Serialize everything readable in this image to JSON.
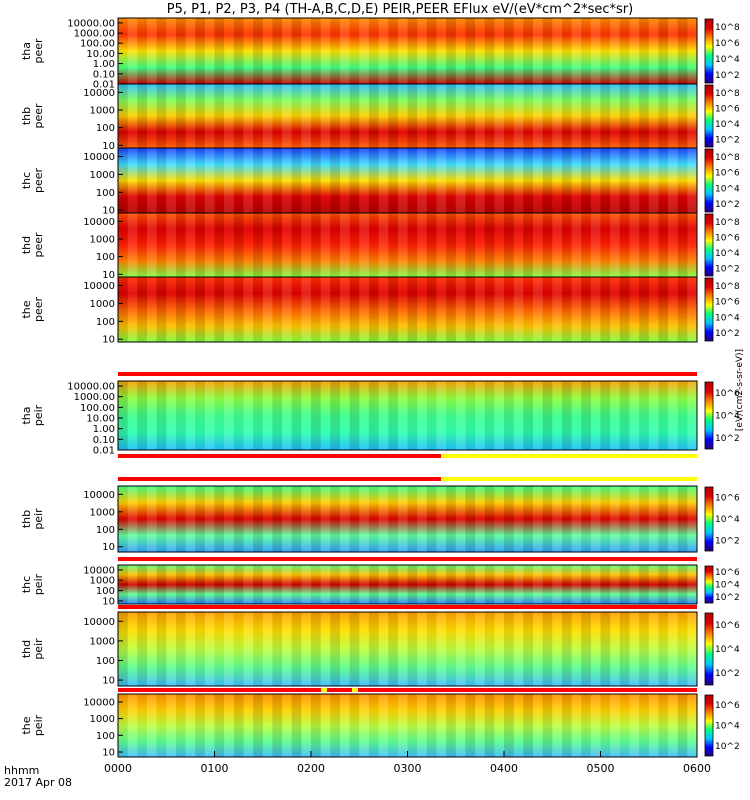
{
  "chart_data": {
    "type": "heatmap",
    "title": "P5, P1, P2, P3, P4 (TH-A,B,C,D,E) PEIR,PEER EFlux eV/(eV*cm^2*sec*sr)",
    "xlabel_line1": "hhmm",
    "xlabel_line2": "2017 Apr 08",
    "x_ticks": [
      "0000",
      "0100",
      "0200",
      "0300",
      "0400",
      "0500",
      "0600"
    ],
    "xlim_minutes": [
      0,
      360
    ],
    "colorbar_label": "[eV/(cm2-s-sr-eV)]",
    "colormap": [
      "#2a007a",
      "#0000ff",
      "#00c8ff",
      "#00ff80",
      "#ffff00",
      "#ff8000",
      "#e00000",
      "#b40000"
    ],
    "panels": [
      {
        "id": "tha_peer",
        "label_line1": "tha",
        "label_line2": "peer",
        "y_ticks": [
          "10000.00",
          "1000.00",
          "100.00",
          "10.00",
          "1.00",
          "0.10",
          "0.01"
        ],
        "ylim": [
          0.01,
          30000
        ],
        "log": true,
        "cb_ticks": [
          "10^8",
          "10^6",
          "10^4",
          "10^2"
        ],
        "cb_range": [
          1,
          9
        ]
      },
      {
        "id": "thb_peer",
        "label_line1": "thb",
        "label_line2": "peer",
        "y_ticks": [
          "10000",
          "1000",
          "100",
          "10"
        ],
        "ylim": [
          7,
          30000
        ],
        "log": true,
        "cb_ticks": [
          "10^8",
          "10^6",
          "10^4",
          "10^2"
        ],
        "cb_range": [
          1,
          9
        ]
      },
      {
        "id": "thc_peer",
        "label_line1": "thc",
        "label_line2": "peer",
        "y_ticks": [
          "10000",
          "1000",
          "100",
          "10"
        ],
        "ylim": [
          7,
          30000
        ],
        "log": true,
        "cb_ticks": [
          "10^8",
          "10^6",
          "10^4",
          "10^2"
        ],
        "cb_range": [
          1,
          9
        ]
      },
      {
        "id": "thd_peer",
        "label_line1": "thd",
        "label_line2": "peer",
        "y_ticks": [
          "10000",
          "1000",
          "100",
          "10"
        ],
        "ylim": [
          7,
          30000
        ],
        "log": true,
        "cb_ticks": [
          "10^8",
          "10^6",
          "10^4",
          "10^2"
        ],
        "cb_range": [
          1,
          9
        ]
      },
      {
        "id": "the_peer",
        "label_line1": "the",
        "label_line2": "peer",
        "y_ticks": [
          "10000",
          "1000",
          "100",
          "10"
        ],
        "ylim": [
          7,
          30000
        ],
        "log": true,
        "cb_ticks": [
          "10^8",
          "10^6",
          "10^4",
          "10^2"
        ],
        "cb_range": [
          1,
          9
        ]
      },
      {
        "id": "tha_peir",
        "label_line1": "tha",
        "label_line2": "peir",
        "y_ticks": [
          "10000.00",
          "1000.00",
          "100.00",
          "10.00",
          "1.00",
          "0.10",
          "0.01"
        ],
        "ylim": [
          0.01,
          30000
        ],
        "log": true,
        "cb_ticks": [
          "10^6",
          "10^4",
          "10^2"
        ],
        "cb_range": [
          1,
          7
        ]
      },
      {
        "id": "thb_peir",
        "label_line1": "thb",
        "label_line2": "peir",
        "y_ticks": [
          "10000",
          "1000",
          "100",
          "10"
        ],
        "ylim": [
          5,
          30000
        ],
        "log": true,
        "cb_ticks": [
          "10^6",
          "10^4",
          "10^2"
        ],
        "cb_range": [
          1,
          7
        ]
      },
      {
        "id": "thc_peir",
        "label_line1": "thc",
        "label_line2": "peir",
        "y_ticks": [
          "10000",
          "1000",
          "100",
          "10"
        ],
        "ylim": [
          5,
          30000
        ],
        "log": true,
        "cb_ticks": [
          "10^6",
          "10^4",
          "10^2"
        ],
        "cb_range": [
          1,
          7
        ]
      },
      {
        "id": "thd_peir",
        "label_line1": "thd",
        "label_line2": "peir",
        "y_ticks": [
          "10000",
          "1000",
          "100",
          "10"
        ],
        "ylim": [
          5,
          30000
        ],
        "log": true,
        "cb_ticks": [
          "10^6",
          "10^4",
          "10^2"
        ],
        "cb_range": [
          1,
          7
        ]
      },
      {
        "id": "the_peir",
        "label_line1": "the",
        "label_line2": "peir",
        "y_ticks": [
          "10000",
          "1000",
          "100",
          "10"
        ],
        "ylim": [
          5,
          30000
        ],
        "log": true,
        "cb_ticks": [
          "10^6",
          "10^4",
          "10^2"
        ],
        "cb_range": [
          1,
          7
        ]
      }
    ]
  }
}
